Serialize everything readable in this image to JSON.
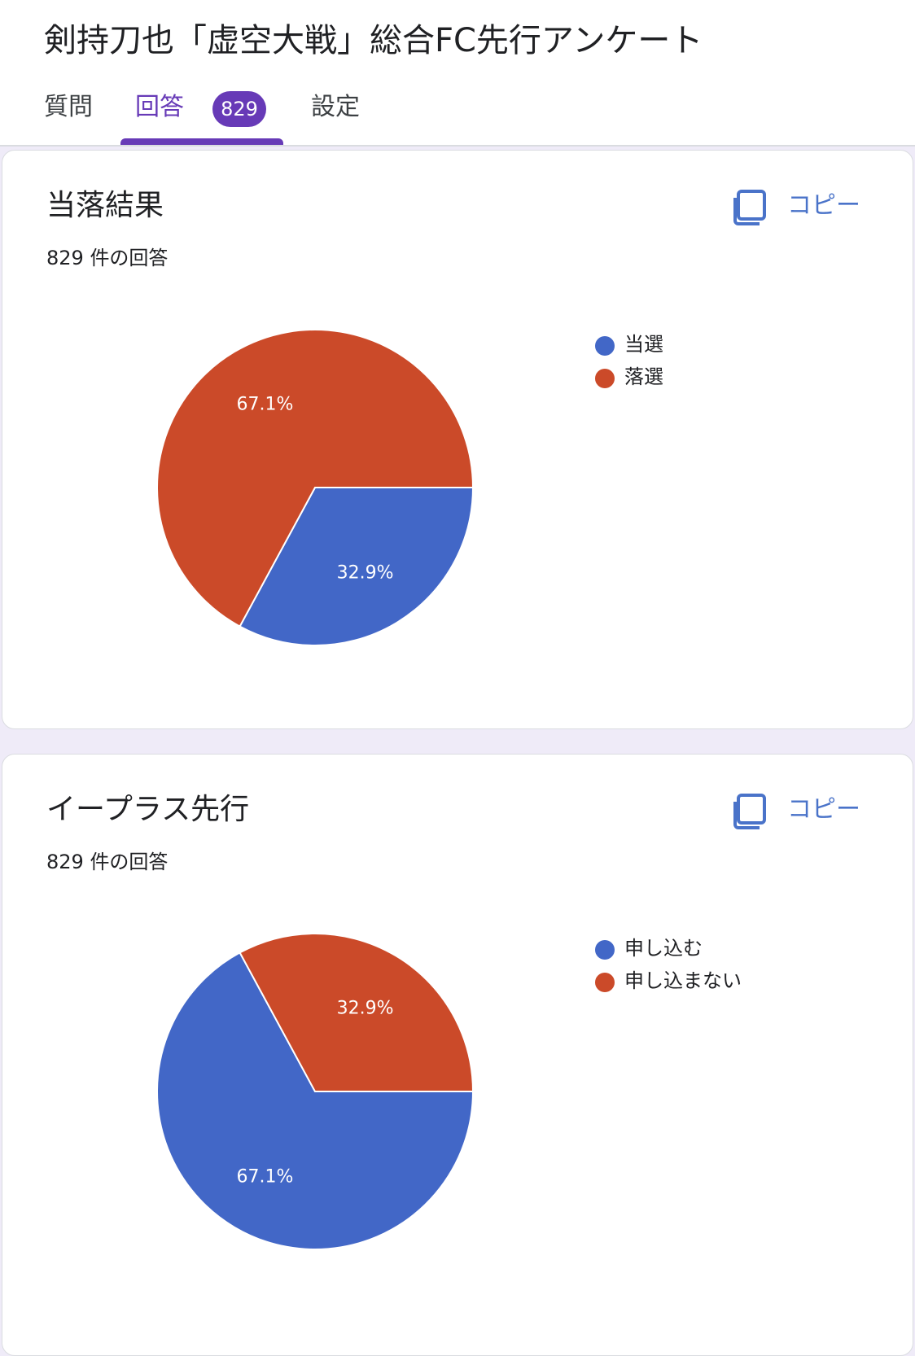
{
  "header": {
    "form_title": "剣持刀也「虚空大戦」総合FC先行アンケート",
    "tabs": [
      {
        "label": "質問"
      },
      {
        "label": "回答",
        "badge": "829",
        "active": true
      },
      {
        "label": "設定"
      }
    ]
  },
  "colors": {
    "accent": "#673ab7",
    "blue": "#4267c7",
    "red": "#cb4a29",
    "link": "#4a73c9"
  },
  "cards": [
    {
      "title": "当落結果",
      "response_count": "829 件の回答",
      "copy_label": "コピー",
      "icon": "copy-icon",
      "legend": [
        {
          "label": "当選",
          "color": "#4267c7"
        },
        {
          "label": "落選",
          "color": "#cb4a29"
        }
      ]
    },
    {
      "title": "イープラス先行",
      "response_count": "829 件の回答",
      "copy_label": "コピー",
      "icon": "copy-icon",
      "legend": [
        {
          "label": "申し込む",
          "color": "#4267c7"
        },
        {
          "label": "申し込まない",
          "color": "#cb4a29"
        }
      ]
    }
  ],
  "chart_data": [
    {
      "type": "pie",
      "title": "当落結果",
      "categories": [
        "当選",
        "落選"
      ],
      "values": [
        32.9,
        67.1
      ],
      "data_labels": [
        "32.9%",
        "67.1%"
      ],
      "colors": [
        "#4267c7",
        "#cb4a29"
      ],
      "legend_position": "right"
    },
    {
      "type": "pie",
      "title": "イープラス先行",
      "categories": [
        "申し込む",
        "申し込まない"
      ],
      "values": [
        67.1,
        32.9
      ],
      "data_labels": [
        "67.1%",
        "32.9%"
      ],
      "colors": [
        "#4267c7",
        "#cb4a29"
      ],
      "legend_position": "right"
    }
  ]
}
